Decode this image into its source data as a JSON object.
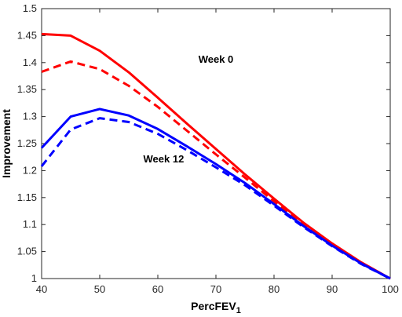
{
  "chart_data": {
    "type": "line",
    "title": "",
    "xlabel": "PercFEV",
    "xlabel_subscript": "1",
    "ylabel": "Improvement",
    "xlim": [
      40,
      100
    ],
    "ylim": [
      1,
      1.5
    ],
    "xticks": [
      "40",
      "50",
      "60",
      "70",
      "80",
      "90",
      "100"
    ],
    "yticks": [
      "1",
      "1.05",
      "1.1",
      "1.15",
      "1.2",
      "1.25",
      "1.3",
      "1.35",
      "1.4",
      "1.45",
      "1.5"
    ],
    "grid": false,
    "legend": "none",
    "x": [
      40,
      45,
      50,
      55,
      60,
      65,
      70,
      75,
      80,
      85,
      90,
      95,
      100
    ],
    "series": [
      {
        "color": "#ff0000",
        "dash": false,
        "values": [
          1.453,
          1.45,
          1.422,
          1.382,
          1.335,
          1.287,
          1.24,
          1.193,
          1.148,
          1.104,
          1.065,
          1.03,
          1.0
        ]
      },
      {
        "color": "#ff0000",
        "dash": true,
        "values": [
          1.383,
          1.402,
          1.388,
          1.357,
          1.318,
          1.274,
          1.23,
          1.187,
          1.143,
          1.1,
          1.062,
          1.029,
          1.0
        ]
      },
      {
        "color": "#0000ff",
        "dash": false,
        "values": [
          1.242,
          1.3,
          1.314,
          1.302,
          1.277,
          1.245,
          1.212,
          1.177,
          1.138,
          1.098,
          1.061,
          1.028,
          1.0
        ]
      },
      {
        "color": "#0000ff",
        "dash": true,
        "values": [
          1.208,
          1.276,
          1.297,
          1.29,
          1.268,
          1.238,
          1.206,
          1.173,
          1.135,
          1.096,
          1.06,
          1.027,
          1.0
        ]
      }
    ],
    "annotations": [
      {
        "text": "Week 0",
        "x": 70,
        "y": 1.4
      },
      {
        "text": "Week 12",
        "x": 61,
        "y": 1.215
      }
    ]
  }
}
